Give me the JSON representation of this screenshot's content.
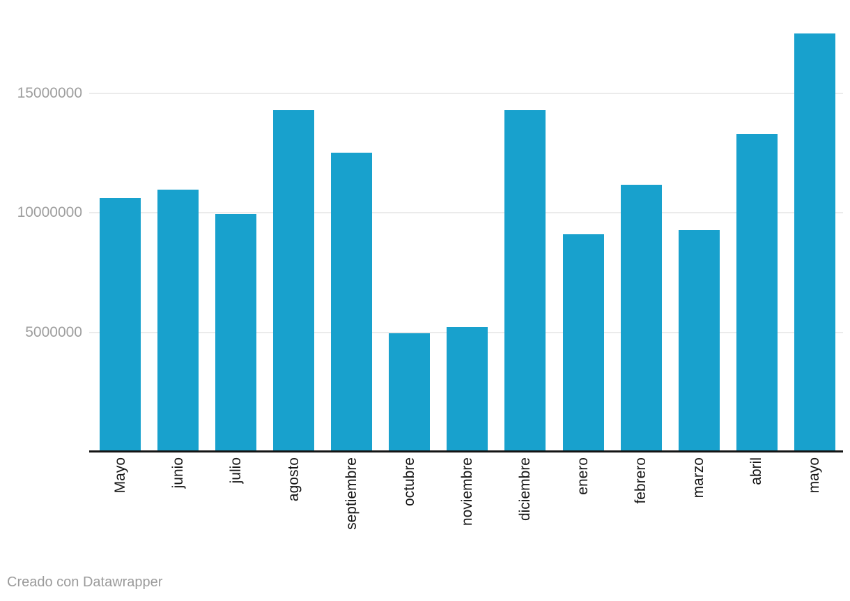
{
  "chart_data": {
    "type": "bar",
    "title": "",
    "xlabel": "",
    "ylabel": "",
    "categories": [
      "Mayo",
      "junio",
      "julio",
      "agosto",
      "septiembre",
      "octubre",
      "noviembre",
      "diciembre",
      "enero",
      "febrero",
      "marzo",
      "abril",
      "mayo"
    ],
    "values": [
      10600000,
      10950000,
      9930000,
      14280000,
      12520000,
      4950000,
      5230000,
      14280000,
      9090000,
      11170000,
      9260000,
      13300000,
      17500000
    ],
    "ylim": [
      0,
      18900000
    ],
    "grid": "horizontal",
    "legend": "none",
    "y_ticks": [
      {
        "value": 5000000,
        "label": "5000000"
      },
      {
        "value": 10000000,
        "label": "10000000"
      },
      {
        "value": 15000000,
        "label": "15000000"
      }
    ],
    "bar_color": "#18a1cd",
    "gridline_color": "#ebebeb",
    "axis_line_color": "#141414",
    "y_label_color": "#9e9e9e",
    "x_label_color": "#161616"
  },
  "footer": {
    "attribution": "Creado con Datawrapper"
  }
}
